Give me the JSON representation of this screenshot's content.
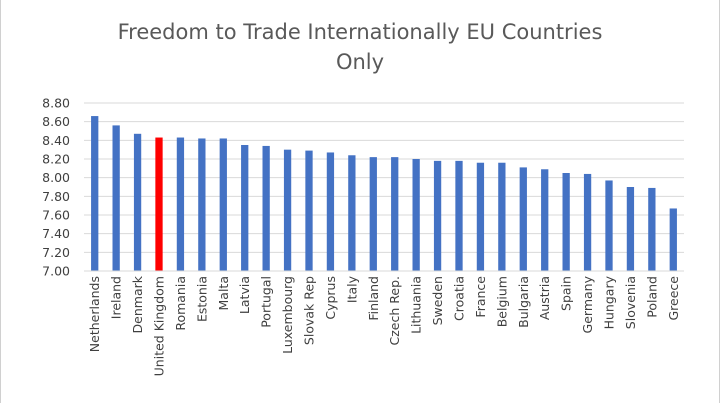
{
  "chart_data": {
    "type": "bar",
    "title_line1": "Freedom to Trade Internationally EU Countries",
    "title_line2": "Only",
    "categories": [
      "Netherlands",
      "Ireland",
      "Denmark",
      "United Kingdom",
      "Romania",
      "Estonia",
      "Malta",
      "Latvia",
      "Portugal",
      "Luxembourg",
      "Slovak Rep",
      "Cyprus",
      "Italy",
      "Finland",
      "Czech Rep.",
      "Lithuania",
      "Sweden",
      "Croatia",
      "France",
      "Belgium",
      "Bulgaria",
      "Austria",
      "Spain",
      "Germany",
      "Hungary",
      "Slovenia",
      "Poland",
      "Greece"
    ],
    "values": [
      8.66,
      8.56,
      8.47,
      8.43,
      8.43,
      8.42,
      8.42,
      8.35,
      8.34,
      8.3,
      8.29,
      8.27,
      8.24,
      8.22,
      8.22,
      8.2,
      8.18,
      8.18,
      8.16,
      8.16,
      8.11,
      8.09,
      8.05,
      8.04,
      7.97,
      7.9,
      7.89,
      7.67
    ],
    "ylim": [
      7.0,
      8.8
    ],
    "yticks": [
      "7.00",
      "7.20",
      "7.40",
      "7.60",
      "7.80",
      "8.00",
      "8.20",
      "8.40",
      "8.60",
      "8.80"
    ],
    "grid": true,
    "colors": {
      "default": "#4472c4",
      "highlight": "#ff0000",
      "grid": "#d9d9d9",
      "text": "#595959"
    },
    "highlight_index": 3
  }
}
